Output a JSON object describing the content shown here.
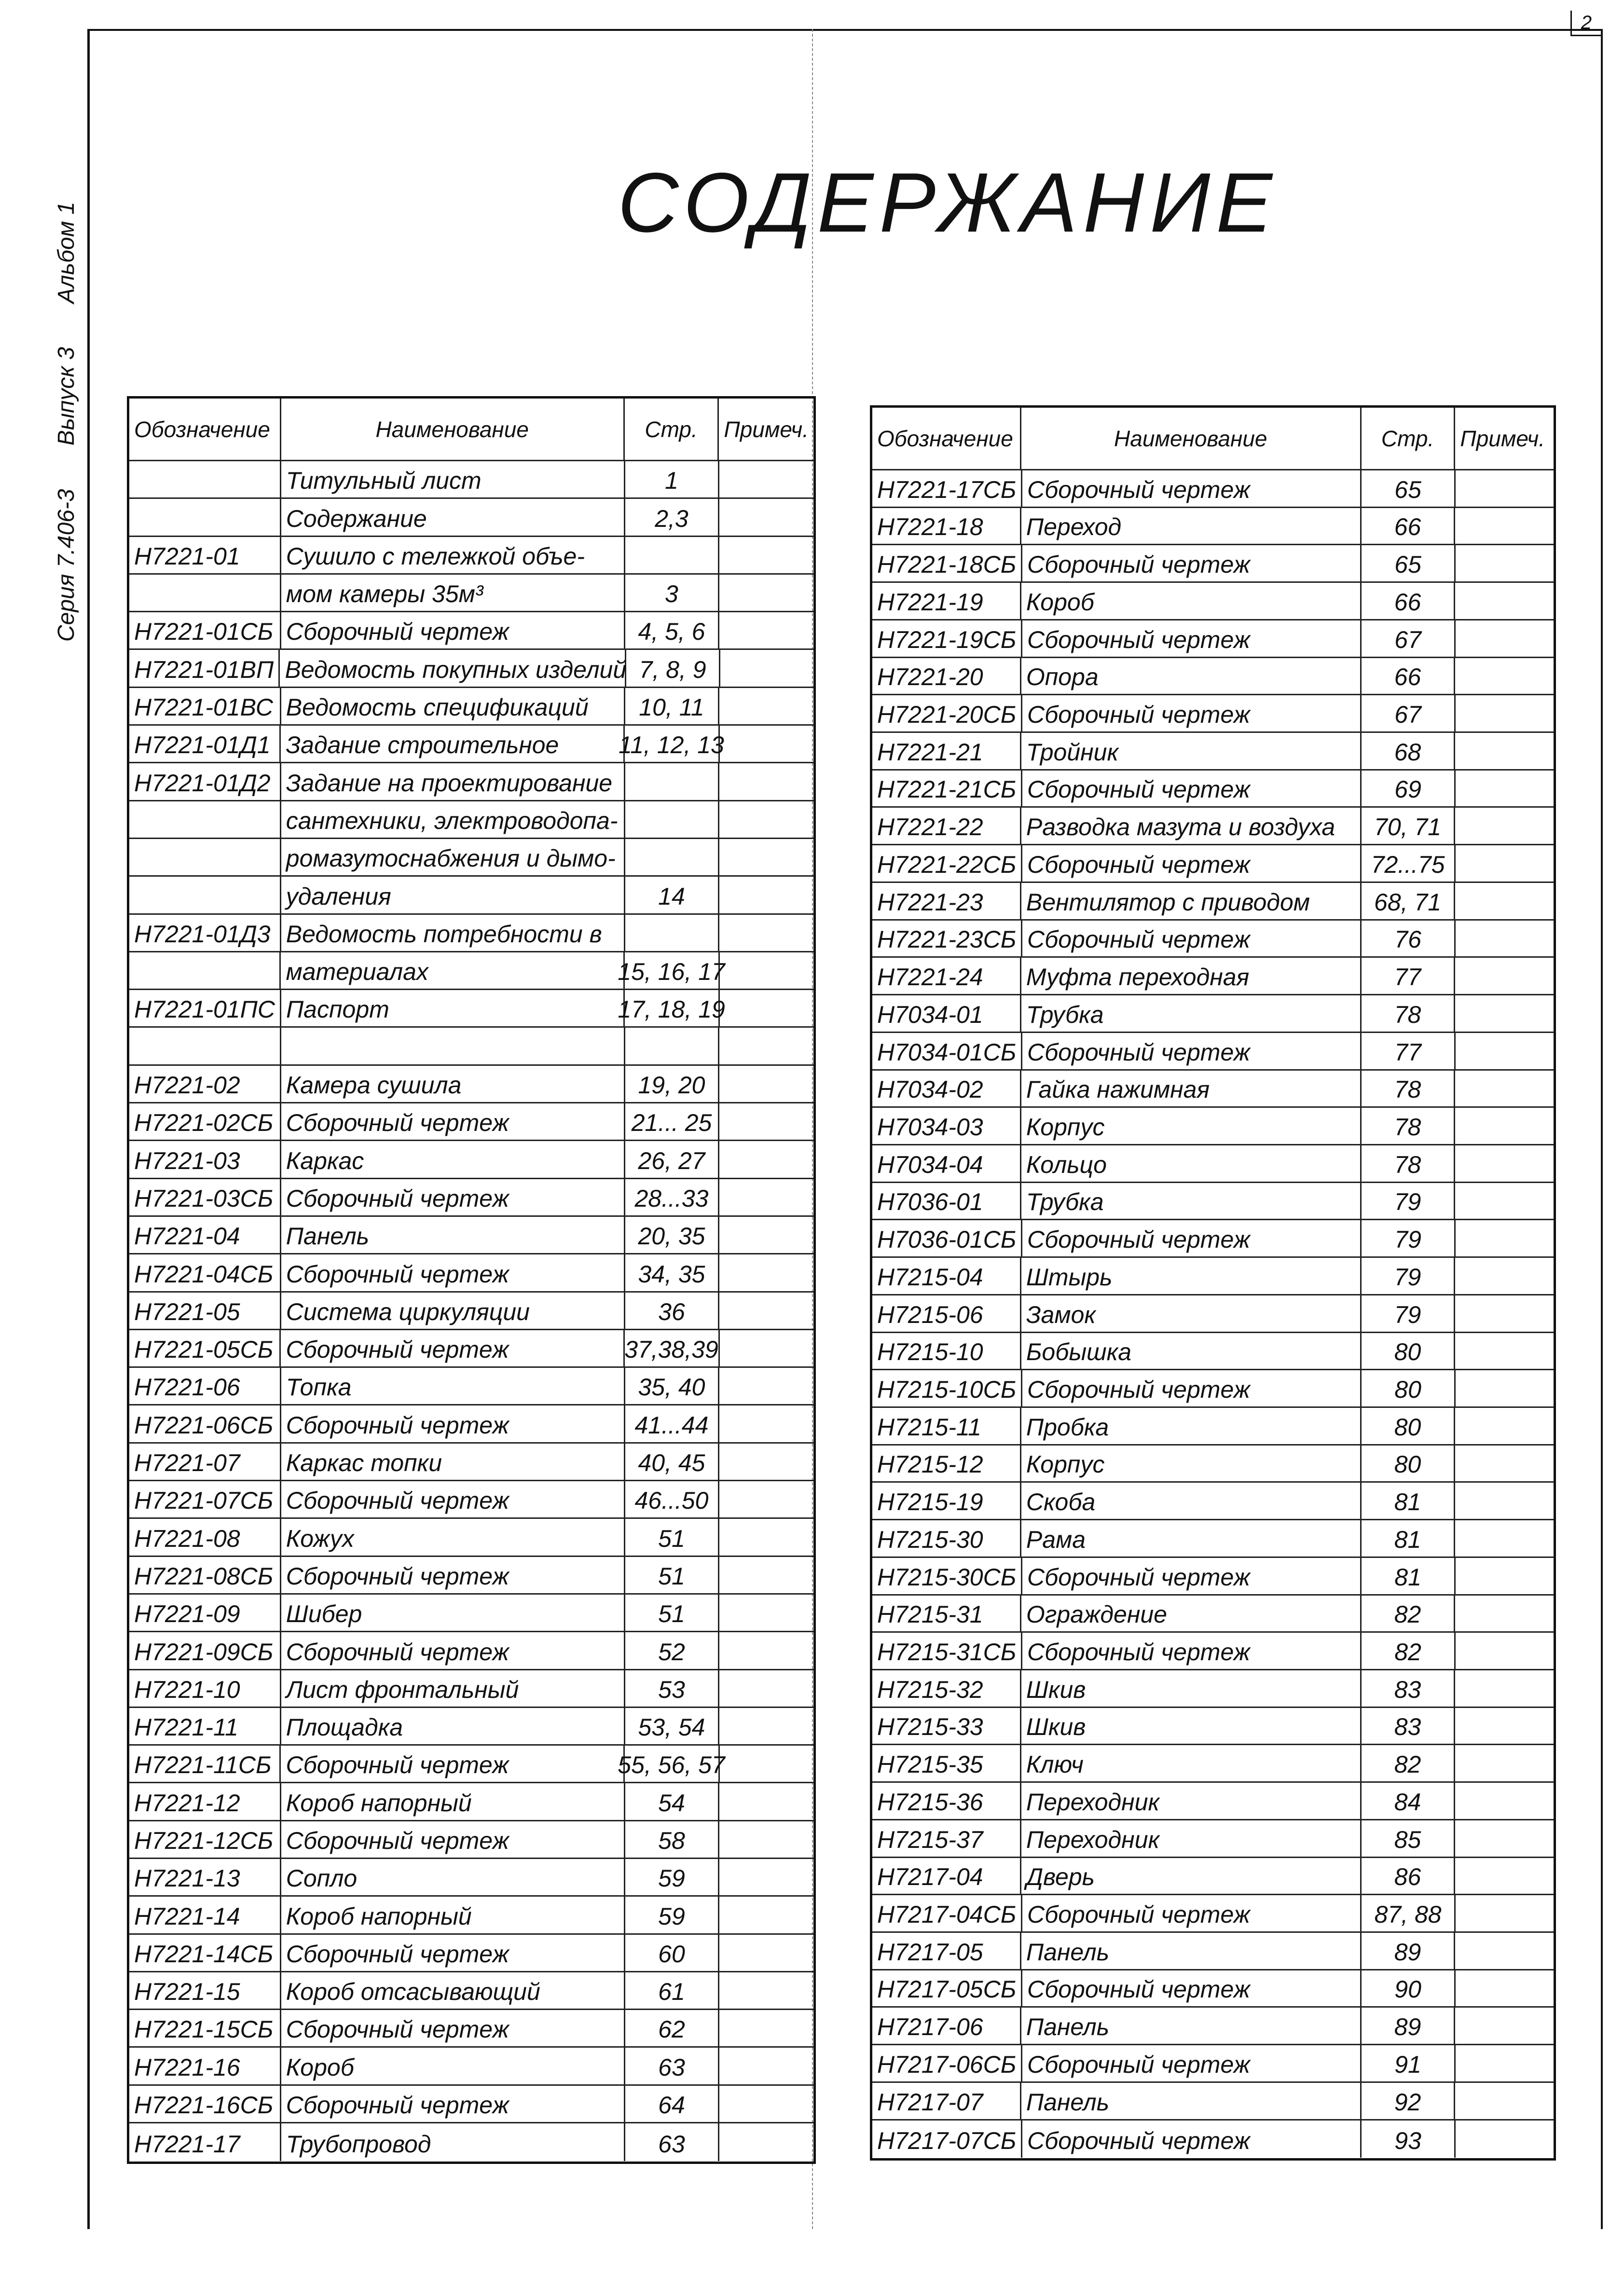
{
  "page_number": "2",
  "title": "СОДЕРЖАНИЕ",
  "side_label": {
    "series": "Серия 7.406-3",
    "issue": "Выпуск 3",
    "album": "Альбом 1"
  },
  "headers": {
    "code": "Обозначение",
    "name": "Наименование",
    "page": "Стр.",
    "note": "Примеч."
  },
  "left_rows": [
    [
      "",
      "Титульный лист",
      "1"
    ],
    [
      "",
      "Содержание",
      "2,3"
    ],
    [
      "Н7221-01",
      "Сушило с тележкой объе-",
      ""
    ],
    [
      "",
      "мом камеры 35м³",
      "3"
    ],
    [
      "Н7221-01СБ",
      "Сборочный чертеж",
      "4, 5, 6"
    ],
    [
      "Н7221-01ВП",
      "Ведомость покупных изделий",
      "7, 8, 9"
    ],
    [
      "Н7221-01ВС",
      "Ведомость спецификаций",
      "10, 11"
    ],
    [
      "Н7221-01Д1",
      "Задание строительное",
      "11, 12, 13"
    ],
    [
      "Н7221-01Д2",
      "Задание на проектирование",
      ""
    ],
    [
      "",
      "сантехники, электроводопа-",
      ""
    ],
    [
      "",
      "ромазутоснабжения и дымо-",
      ""
    ],
    [
      "",
      "удаления",
      "14"
    ],
    [
      "Н7221-01Д3",
      "Ведомость потребности в",
      ""
    ],
    [
      "",
      "материалах",
      "15, 16, 17"
    ],
    [
      "Н7221-01ПС",
      "Паспорт",
      "17, 18, 19"
    ],
    [
      "",
      "",
      ""
    ],
    [
      "Н7221-02",
      "Камера сушила",
      "19, 20"
    ],
    [
      "Н7221-02СБ",
      "Сборочный чертеж",
      "21... 25"
    ],
    [
      "Н7221-03",
      "Каркас",
      "26, 27"
    ],
    [
      "Н7221-03СБ",
      "Сборочный чертеж",
      "28...33"
    ],
    [
      "Н7221-04",
      "Панель",
      "20, 35"
    ],
    [
      "Н7221-04СБ",
      "Сборочный чертеж",
      "34, 35"
    ],
    [
      "Н7221-05",
      "Система циркуляции",
      "36"
    ],
    [
      "Н7221-05СБ",
      "Сборочный чертеж",
      "37,38,39"
    ],
    [
      "Н7221-06",
      "Топка",
      "35, 40"
    ],
    [
      "Н7221-06СБ",
      "Сборочный чертеж",
      "41...44"
    ],
    [
      "Н7221-07",
      "Каркас топки",
      "40, 45"
    ],
    [
      "Н7221-07СБ",
      "Сборочный чертеж",
      "46...50"
    ],
    [
      "Н7221-08",
      "Кожух",
      "51"
    ],
    [
      "Н7221-08СБ",
      "Сборочный чертеж",
      "51"
    ],
    [
      "Н7221-09",
      "Шибер",
      "51"
    ],
    [
      "Н7221-09СБ",
      "Сборочный чертеж",
      "52"
    ],
    [
      "Н7221-10",
      "Лист фронтальный",
      "53"
    ],
    [
      "Н7221-11",
      "Площадка",
      "53, 54"
    ],
    [
      "Н7221-11СБ",
      "Сборочный чертеж",
      "55, 56, 57"
    ],
    [
      "Н7221-12",
      "Короб напорный",
      "54"
    ],
    [
      "Н7221-12СБ",
      "Сборочный чертеж",
      "58"
    ],
    [
      "Н7221-13",
      "Сопло",
      "59"
    ],
    [
      "Н7221-14",
      "Короб напорный",
      "59"
    ],
    [
      "Н7221-14СБ",
      "Сборочный чертеж",
      "60"
    ],
    [
      "Н7221-15",
      "Короб отсасывающий",
      "61"
    ],
    [
      "Н7221-15СБ",
      "Сборочный чертеж",
      "62"
    ],
    [
      "Н7221-16",
      "Короб",
      "63"
    ],
    [
      "Н7221-16СБ",
      "Сборочный чертеж",
      "64"
    ],
    [
      "Н7221-17",
      "Трубопровод",
      "63"
    ]
  ],
  "right_rows": [
    [
      "Н7221-17СБ",
      "Сборочный чертеж",
      "65"
    ],
    [
      "Н7221-18",
      "Переход",
      "66"
    ],
    [
      "Н7221-18СБ",
      "Сборочный чертеж",
      "65"
    ],
    [
      "Н7221-19",
      "Короб",
      "66"
    ],
    [
      "Н7221-19СБ",
      "Сборочный чертеж",
      "67"
    ],
    [
      "Н7221-20",
      "Опора",
      "66"
    ],
    [
      "Н7221-20СБ",
      "Сборочный чертеж",
      "67"
    ],
    [
      "Н7221-21",
      "Тройник",
      "68"
    ],
    [
      "Н7221-21СБ",
      "Сборочный чертеж",
      "69"
    ],
    [
      "Н7221-22",
      "Разводка мазута и воздуха",
      "70, 71"
    ],
    [
      "Н7221-22СБ",
      "Сборочный чертеж",
      "72...75"
    ],
    [
      "Н7221-23",
      "Вентилятор с приводом",
      "68, 71"
    ],
    [
      "Н7221-23СБ",
      "Сборочный чертеж",
      "76"
    ],
    [
      "Н7221-24",
      "Муфта переходная",
      "77"
    ],
    [
      "Н7034-01",
      "Трубка",
      "78"
    ],
    [
      "Н7034-01СБ",
      "Сборочный чертеж",
      "77"
    ],
    [
      "Н7034-02",
      "Гайка нажимная",
      "78"
    ],
    [
      "Н7034-03",
      "Корпус",
      "78"
    ],
    [
      "Н7034-04",
      "Кольцо",
      "78"
    ],
    [
      "Н7036-01",
      "Трубка",
      "79"
    ],
    [
      "Н7036-01СБ",
      "Сборочный чертеж",
      "79"
    ],
    [
      "Н7215-04",
      "Штырь",
      "79"
    ],
    [
      "Н7215-06",
      "Замок",
      "79"
    ],
    [
      "Н7215-10",
      "Бобышка",
      "80"
    ],
    [
      "Н7215-10СБ",
      "Сборочный чертеж",
      "80"
    ],
    [
      "Н7215-11",
      "Пробка",
      "80"
    ],
    [
      "Н7215-12",
      "Корпус",
      "80"
    ],
    [
      "Н7215-19",
      "Скоба",
      "81"
    ],
    [
      "Н7215-30",
      "Рама",
      "81"
    ],
    [
      "Н7215-30СБ",
      "Сборочный чертеж",
      "81"
    ],
    [
      "Н7215-31",
      "Ограждение",
      "82"
    ],
    [
      "Н7215-31СБ",
      "Сборочный чертеж",
      "82"
    ],
    [
      "Н7215-32",
      "Шкив",
      "83"
    ],
    [
      "Н7215-33",
      "Шкив",
      "83"
    ],
    [
      "Н7215-35",
      "Ключ",
      "82"
    ],
    [
      "Н7215-36",
      "Переходник",
      "84"
    ],
    [
      "Н7215-37",
      "Переходник",
      "85"
    ],
    [
      "Н7217-04",
      "Дверь",
      "86"
    ],
    [
      "Н7217-04СБ",
      "Сборочный чертеж",
      "87, 88"
    ],
    [
      "Н7217-05",
      "Панель",
      "89"
    ],
    [
      "Н7217-05СБ",
      "Сборочный чертеж",
      "90"
    ],
    [
      "Н7217-06",
      "Панель",
      "89"
    ],
    [
      "Н7217-06СБ",
      "Сборочный чертеж",
      "91"
    ],
    [
      "Н7217-07",
      "Панель",
      "92"
    ],
    [
      "Н7217-07СБ",
      "Сборочный чертеж",
      "93"
    ]
  ]
}
